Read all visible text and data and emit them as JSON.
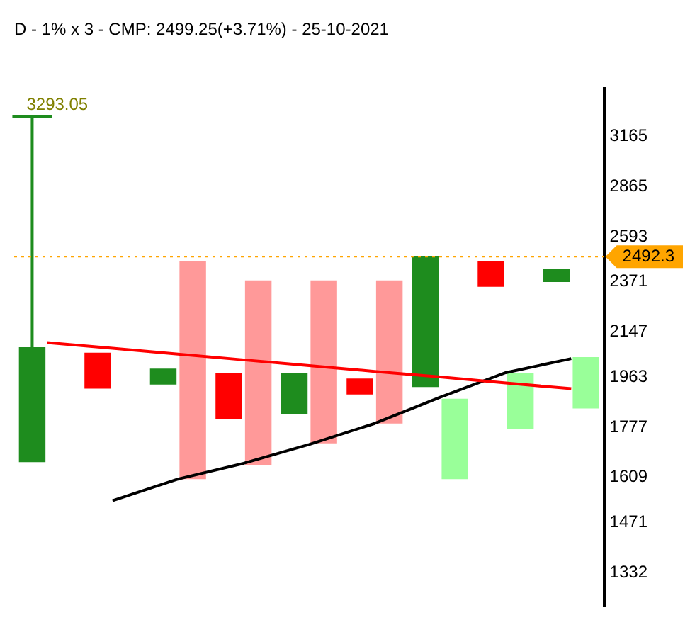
{
  "chart_data": {
    "type": "bar",
    "title": "D - 1% x 3 - CMP: 2499.25(+3.71%) - 25-10-2021",
    "categories": [
      null,
      null,
      null,
      null,
      null,
      null,
      null,
      null,
      null
    ],
    "series": [
      {
        "colors": [
          "#1e8c1e",
          "#ff0000",
          "#1e8c1e",
          "#ff0000",
          "#1e8c1e",
          "#ff0000",
          "#1e8c1e",
          "#ff0000",
          "#1e8c1e"
        ],
        "base": [
          1658,
          1918,
          1934,
          1807,
          1822,
          1896,
          1924,
          2348,
          2370
        ],
        "values": [
          425,
          142,
          62,
          173,
          158,
          61,
          569,
          124,
          64
        ],
        "errors": [
          [
            2083,
            3293.05
          ],
          null,
          null,
          null,
          null,
          null,
          null,
          null,
          null
        ]
      },
      {
        "colors": [
          "#ff9999",
          "#ff9999",
          "#ff9999",
          "#ff9999",
          "#ff9999",
          "#ff9999",
          "#99ff99",
          "#99ff99",
          "#99ff99"
        ],
        "base": [
          null,
          null,
          1603,
          1649,
          1721,
          1790,
          1603,
          1771,
          1844
        ],
        "values": [
          null,
          null,
          869,
          729,
          657,
          588,
          277,
          209,
          198
        ]
      },
      {
        "type": "line",
        "color": "#ff0000",
        "values": [
          2102,
          2078,
          2054,
          2031,
          2008,
          1985,
          1963,
          1940,
          1918
        ]
      },
      {
        "type": "line",
        "color": "#000000",
        "values": [
          null,
          1536,
          1603,
          1654,
          1717,
          1790,
          1886,
          1980,
          2036
        ]
      }
    ],
    "log": true,
    "ylim": [
      1245,
      3480
    ],
    "yticks": [
      1332,
      1471,
      1609,
      1777,
      1963,
      2147,
      2371,
      2593,
      2865,
      3165
    ],
    "tick_labels": "y",
    "grid": false,
    "legend": false,
    "marker": "none",
    "annotations": [
      "3293.05"
    ],
    "ref_lines": [
      {
        "axis": "y",
        "value": 2492.3,
        "label": "2492.3",
        "color": "#ffa500"
      }
    ]
  }
}
